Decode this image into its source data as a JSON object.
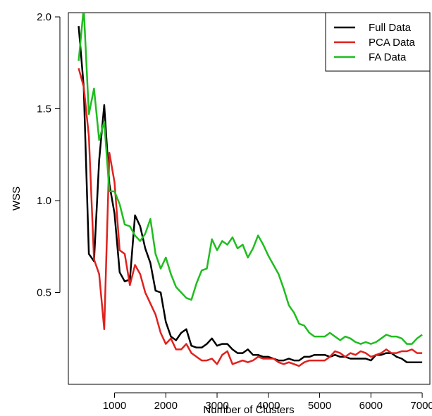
{
  "chart_data": {
    "type": "line",
    "title": "",
    "xlabel": "Number of Clusters",
    "ylabel": "WSS",
    "xlim": [
      100,
      7150
    ],
    "ylim": [
      0.0,
      2.0
    ],
    "xticks": [
      1000,
      2000,
      3000,
      4000,
      5000,
      6000,
      7000
    ],
    "yticks": [
      0.5,
      1.0,
      1.5,
      2.0
    ],
    "xtick_labels": [
      "1000",
      "2000",
      "3000",
      "4000",
      "5000",
      "6000",
      "7000"
    ],
    "ytick_labels": [
      "0.5",
      "1.0",
      "1.5",
      "2.0"
    ],
    "grid": false,
    "legend_position": "top-right",
    "series": [
      {
        "name": "Full Data",
        "color": "#000000",
        "points": [
          [
            300,
            1.95
          ],
          [
            400,
            1.62
          ],
          [
            500,
            0.71
          ],
          [
            600,
            0.67
          ],
          [
            700,
            1.22
          ],
          [
            800,
            1.52
          ],
          [
            900,
            1.09
          ],
          [
            1000,
            0.93
          ],
          [
            1100,
            0.61
          ],
          [
            1200,
            0.56
          ],
          [
            1300,
            0.57
          ],
          [
            1400,
            0.92
          ],
          [
            1500,
            0.86
          ],
          [
            1600,
            0.74
          ],
          [
            1700,
            0.66
          ],
          [
            1800,
            0.51
          ],
          [
            1900,
            0.5
          ],
          [
            2000,
            0.34
          ],
          [
            2100,
            0.26
          ],
          [
            2200,
            0.24
          ],
          [
            2300,
            0.28
          ],
          [
            2400,
            0.3
          ],
          [
            2500,
            0.21
          ],
          [
            2600,
            0.2
          ],
          [
            2700,
            0.2
          ],
          [
            2800,
            0.22
          ],
          [
            2900,
            0.25
          ],
          [
            3000,
            0.21
          ],
          [
            3100,
            0.22
          ],
          [
            3200,
            0.22
          ],
          [
            3300,
            0.19
          ],
          [
            3400,
            0.17
          ],
          [
            3500,
            0.17
          ],
          [
            3600,
            0.19
          ],
          [
            3700,
            0.16
          ],
          [
            3800,
            0.16
          ],
          [
            3900,
            0.15
          ],
          [
            4000,
            0.15
          ],
          [
            4100,
            0.14
          ],
          [
            4200,
            0.13
          ],
          [
            4300,
            0.13
          ],
          [
            4400,
            0.14
          ],
          [
            4500,
            0.13
          ],
          [
            4600,
            0.13
          ],
          [
            4700,
            0.15
          ],
          [
            4800,
            0.15
          ],
          [
            4900,
            0.16
          ],
          [
            5000,
            0.16
          ],
          [
            5100,
            0.16
          ],
          [
            5200,
            0.15
          ],
          [
            5300,
            0.16
          ],
          [
            5400,
            0.15
          ],
          [
            5500,
            0.15
          ],
          [
            5600,
            0.14
          ],
          [
            5700,
            0.14
          ],
          [
            5800,
            0.14
          ],
          [
            5900,
            0.14
          ],
          [
            6000,
            0.13
          ],
          [
            6100,
            0.16
          ],
          [
            6200,
            0.16
          ],
          [
            6300,
            0.17
          ],
          [
            6400,
            0.17
          ],
          [
            6500,
            0.15
          ],
          [
            6600,
            0.14
          ],
          [
            6700,
            0.12
          ],
          [
            6800,
            0.12
          ],
          [
            6900,
            0.12
          ],
          [
            7000,
            0.12
          ]
        ]
      },
      {
        "name": "PCA Data",
        "color": "#e0211d",
        "points": [
          [
            300,
            1.72
          ],
          [
            400,
            1.62
          ],
          [
            500,
            1.35
          ],
          [
            600,
            0.68
          ],
          [
            700,
            0.6
          ],
          [
            800,
            0.3
          ],
          [
            900,
            1.26
          ],
          [
            1000,
            1.1
          ],
          [
            1100,
            0.73
          ],
          [
            1200,
            0.71
          ],
          [
            1300,
            0.54
          ],
          [
            1400,
            0.65
          ],
          [
            1500,
            0.6
          ],
          [
            1600,
            0.5
          ],
          [
            1700,
            0.44
          ],
          [
            1800,
            0.38
          ],
          [
            1900,
            0.28
          ],
          [
            2000,
            0.22
          ],
          [
            2100,
            0.25
          ],
          [
            2200,
            0.19
          ],
          [
            2300,
            0.19
          ],
          [
            2400,
            0.22
          ],
          [
            2500,
            0.17
          ],
          [
            2600,
            0.15
          ],
          [
            2700,
            0.13
          ],
          [
            2800,
            0.13
          ],
          [
            2900,
            0.14
          ],
          [
            3000,
            0.11
          ],
          [
            3100,
            0.16
          ],
          [
            3200,
            0.18
          ],
          [
            3300,
            0.11
          ],
          [
            3400,
            0.12
          ],
          [
            3500,
            0.13
          ],
          [
            3600,
            0.12
          ],
          [
            3700,
            0.13
          ],
          [
            3800,
            0.15
          ],
          [
            3900,
            0.14
          ],
          [
            4000,
            0.14
          ],
          [
            4100,
            0.14
          ],
          [
            4200,
            0.12
          ],
          [
            4300,
            0.11
          ],
          [
            4400,
            0.12
          ],
          [
            4500,
            0.11
          ],
          [
            4600,
            0.1
          ],
          [
            4700,
            0.12
          ],
          [
            4800,
            0.13
          ],
          [
            4900,
            0.13
          ],
          [
            5000,
            0.13
          ],
          [
            5100,
            0.13
          ],
          [
            5200,
            0.15
          ],
          [
            5300,
            0.18
          ],
          [
            5400,
            0.17
          ],
          [
            5500,
            0.15
          ],
          [
            5600,
            0.17
          ],
          [
            5700,
            0.16
          ],
          [
            5800,
            0.18
          ],
          [
            5900,
            0.17
          ],
          [
            6000,
            0.15
          ],
          [
            6100,
            0.16
          ],
          [
            6200,
            0.17
          ],
          [
            6300,
            0.19
          ],
          [
            6400,
            0.17
          ],
          [
            6500,
            0.17
          ],
          [
            6600,
            0.18
          ],
          [
            6700,
            0.18
          ],
          [
            6800,
            0.19
          ],
          [
            6900,
            0.17
          ],
          [
            7000,
            0.17
          ]
        ]
      },
      {
        "name": "FA Data",
        "color": "#1fbd1f",
        "points": [
          [
            300,
            1.76
          ],
          [
            400,
            2.05
          ],
          [
            500,
            1.47
          ],
          [
            600,
            1.61
          ],
          [
            700,
            1.33
          ],
          [
            800,
            1.43
          ],
          [
            900,
            1.05
          ],
          [
            1000,
            1.05
          ],
          [
            1100,
            0.98
          ],
          [
            1200,
            0.87
          ],
          [
            1300,
            0.86
          ],
          [
            1400,
            0.81
          ],
          [
            1500,
            0.78
          ],
          [
            1600,
            0.82
          ],
          [
            1700,
            0.9
          ],
          [
            1800,
            0.71
          ],
          [
            1900,
            0.63
          ],
          [
            2000,
            0.69
          ],
          [
            2100,
            0.6
          ],
          [
            2200,
            0.53
          ],
          [
            2300,
            0.5
          ],
          [
            2400,
            0.47
          ],
          [
            2500,
            0.46
          ],
          [
            2600,
            0.55
          ],
          [
            2700,
            0.62
          ],
          [
            2800,
            0.63
          ],
          [
            2900,
            0.79
          ],
          [
            3000,
            0.73
          ],
          [
            3100,
            0.78
          ],
          [
            3200,
            0.76
          ],
          [
            3300,
            0.8
          ],
          [
            3400,
            0.74
          ],
          [
            3500,
            0.76
          ],
          [
            3600,
            0.69
          ],
          [
            3700,
            0.74
          ],
          [
            3800,
            0.81
          ],
          [
            3900,
            0.76
          ],
          [
            4000,
            0.7
          ],
          [
            4100,
            0.65
          ],
          [
            4200,
            0.6
          ],
          [
            4300,
            0.52
          ],
          [
            4400,
            0.43
          ],
          [
            4500,
            0.39
          ],
          [
            4600,
            0.33
          ],
          [
            4700,
            0.32
          ],
          [
            4800,
            0.28
          ],
          [
            4900,
            0.26
          ],
          [
            5000,
            0.26
          ],
          [
            5100,
            0.26
          ],
          [
            5200,
            0.28
          ],
          [
            5300,
            0.26
          ],
          [
            5400,
            0.24
          ],
          [
            5500,
            0.26
          ],
          [
            5600,
            0.25
          ],
          [
            5700,
            0.23
          ],
          [
            5800,
            0.22
          ],
          [
            5900,
            0.23
          ],
          [
            6000,
            0.22
          ],
          [
            6100,
            0.23
          ],
          [
            6200,
            0.25
          ],
          [
            6300,
            0.27
          ],
          [
            6400,
            0.26
          ],
          [
            6500,
            0.26
          ],
          [
            6600,
            0.25
          ],
          [
            6700,
            0.22
          ],
          [
            6800,
            0.22
          ],
          [
            6900,
            0.25
          ],
          [
            7000,
            0.27
          ]
        ]
      }
    ]
  }
}
